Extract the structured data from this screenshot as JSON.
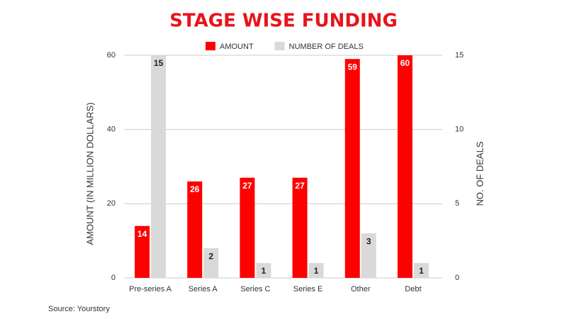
{
  "chart_data": {
    "type": "bar",
    "title": "STAGE WISE FUNDING",
    "categories": [
      "Pre-series A",
      "Series A",
      "Series C",
      "Series E",
      "Other",
      "Debt"
    ],
    "series": [
      {
        "name": "AMOUNT",
        "color": "#ff0000",
        "values": [
          14,
          26,
          27,
          27,
          59,
          60
        ]
      },
      {
        "name": "NUMBER OF DEALS",
        "color": "#d9d9d9",
        "values": [
          15,
          2,
          1,
          1,
          3,
          1
        ],
        "axis": "y2"
      }
    ],
    "ylabel": "AMOUNT (IN MILLION DOLLARS)",
    "y2label": "NO. OF DEALS",
    "ylim": [
      0,
      60
    ],
    "yticks": [
      0,
      20,
      40,
      60
    ],
    "y2lim": [
      0,
      15
    ],
    "y2ticks": [
      0,
      5,
      10,
      15
    ],
    "grid": true,
    "legend": "top",
    "source": "Source: Yourstory"
  }
}
